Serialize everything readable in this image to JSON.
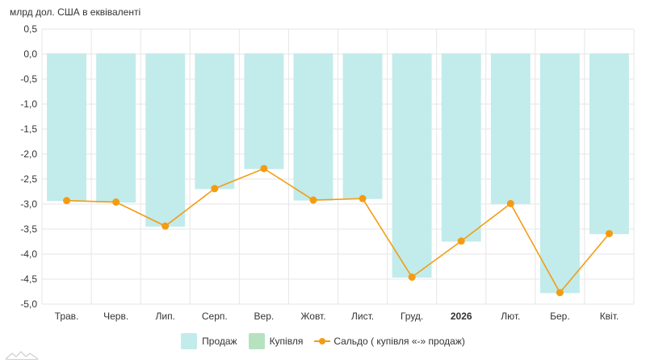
{
  "unit_label": "млрд дол. США в еквіваленті",
  "colors": {
    "sell": "#c2ebeb",
    "buy": "#b6e2bf",
    "balance": "#f39c12",
    "grid": "#e6e6e6",
    "axis_text": "#333333"
  },
  "legend": [
    {
      "label": "Продаж",
      "kind": "bar",
      "color": "#c2ebeb"
    },
    {
      "label": "Купівля",
      "kind": "bar",
      "color": "#b6e2bf"
    },
    {
      "label": "Сальдо ( купівля «-» продаж)",
      "kind": "line",
      "color": "#f39c12"
    }
  ],
  "chart_data": {
    "type": "bar",
    "title": "",
    "xlabel": "",
    "ylabel": "млрд дол. США в еквіваленті",
    "categories": [
      "Трав.",
      "Черв.",
      "Лип.",
      "Серп.",
      "Вер.",
      "Жовт.",
      "Лист.",
      "Груд.",
      "2026",
      "Лют.",
      "Бер.",
      "Квіт."
    ],
    "bold_categories": [
      "2026"
    ],
    "ylim": [
      -5.0,
      0.5
    ],
    "yticks": [
      0.5,
      0.0,
      -0.5,
      -1.0,
      -1.5,
      -2.0,
      -2.5,
      -3.0,
      -3.5,
      -4.0,
      -4.5,
      -5.0
    ],
    "ytick_labels": [
      "0,5",
      "0,0",
      "-0,5",
      "-1,0",
      "-1,5",
      "-2,0",
      "-2,5",
      "-3,0",
      "-3,5",
      "-4,0",
      "-4,5",
      "-5,0"
    ],
    "grid": true,
    "legend_position": "bottom",
    "series": [
      {
        "name": "Продаж",
        "type": "bar",
        "values": [
          -2.94,
          -2.97,
          -3.45,
          -2.7,
          -2.3,
          -2.93,
          -2.9,
          -4.47,
          -3.75,
          -3.0,
          -4.78,
          -3.6
        ]
      },
      {
        "name": "Купівля",
        "type": "bar",
        "values": [
          0.01,
          0.01,
          0.01,
          0.01,
          0.01,
          0.01,
          0.01,
          0.01,
          0.01,
          0.01,
          0.01,
          0.01
        ]
      },
      {
        "name": "Сальдо ( купівля «-» продаж)",
        "type": "line",
        "values": [
          -2.93,
          -2.96,
          -3.44,
          -2.69,
          -2.29,
          -2.92,
          -2.89,
          -4.46,
          -3.74,
          -2.99,
          -4.77,
          -3.59
        ]
      }
    ]
  }
}
